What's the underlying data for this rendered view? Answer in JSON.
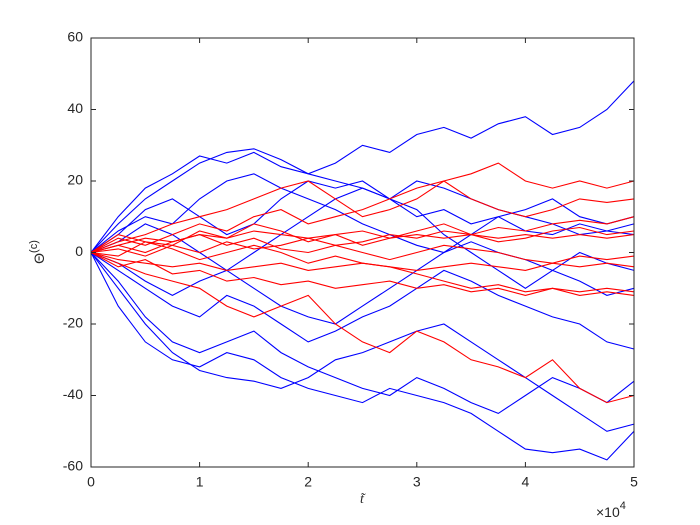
{
  "chart_data": {
    "type": "line",
    "y_label": "Θ",
    "y_label_superscript": "(c)",
    "x_label": "t̃",
    "x_multiplier": "×10",
    "x_multiplier_exponent": "4",
    "x": [
      0,
      2500,
      5000,
      7500,
      10000,
      12500,
      15000,
      17500,
      20000,
      22500,
      25000,
      27500,
      30000,
      32500,
      35000,
      37500,
      40000,
      42500,
      45000,
      47500,
      50000
    ],
    "xlim": [
      0,
      50000
    ],
    "xticks": [
      0,
      {
        "value": 10000,
        "label": "1"
      },
      {
        "value": 20000,
        "label": "2"
      },
      {
        "value": 30000,
        "label": "3"
      },
      {
        "value": 40000,
        "label": "4"
      },
      {
        "value": 50000,
        "label": "5"
      }
    ],
    "ylim": [
      -60,
      60
    ],
    "yticks": [
      -60,
      -40,
      -20,
      0,
      20,
      40,
      60
    ],
    "grid": false,
    "series": [
      {
        "color": "#0000ff",
        "values": [
          0,
          10,
          18,
          22,
          27,
          25,
          28,
          24,
          22,
          25,
          30,
          28,
          33,
          35,
          32,
          36,
          38,
          33,
          35,
          40,
          48
        ]
      },
      {
        "color": "#0000ff",
        "values": [
          0,
          8,
          15,
          20,
          25,
          28,
          29,
          26,
          22,
          20,
          18,
          15,
          10,
          12,
          8,
          10,
          6,
          5,
          8,
          6,
          5
        ]
      },
      {
        "color": "#0000ff",
        "values": [
          0,
          -10,
          -20,
          -28,
          -33,
          -35,
          -36,
          -38,
          -35,
          -30,
          -28,
          -25,
          -22,
          -20,
          -25,
          -30,
          -35,
          -40,
          -45,
          -50,
          -48
        ]
      },
      {
        "color": "#0000ff",
        "values": [
          0,
          -15,
          -25,
          -30,
          -32,
          -28,
          -30,
          -35,
          -38,
          -40,
          -42,
          -38,
          -40,
          -42,
          -45,
          -50,
          -55,
          -56,
          -55,
          -58,
          -50
        ]
      },
      {
        "color": "#0000ff",
        "values": [
          0,
          5,
          12,
          15,
          10,
          5,
          8,
          15,
          20,
          18,
          20,
          15,
          12,
          5,
          0,
          -5,
          -10,
          -5,
          0,
          -3,
          -5
        ]
      },
      {
        "color": "#0000ff",
        "values": [
          0,
          -5,
          -10,
          -15,
          -18,
          -12,
          -15,
          -20,
          -25,
          -22,
          -18,
          -15,
          -10,
          -5,
          -8,
          -12,
          -15,
          -18,
          -20,
          -25,
          -27
        ]
      },
      {
        "color": "#0000ff",
        "values": [
          0,
          3,
          8,
          5,
          0,
          -5,
          -10,
          -15,
          -18,
          -20,
          -15,
          -10,
          -5,
          0,
          5,
          10,
          12,
          15,
          10,
          8,
          10
        ]
      },
      {
        "color": "#0000ff",
        "values": [
          0,
          -8,
          -18,
          -25,
          -28,
          -25,
          -22,
          -28,
          -32,
          -35,
          -38,
          -40,
          -35,
          -38,
          -42,
          -45,
          -40,
          -35,
          -38,
          -42,
          -36
        ]
      },
      {
        "color": "#0000ff",
        "values": [
          0,
          6,
          10,
          8,
          15,
          20,
          22,
          18,
          15,
          12,
          8,
          5,
          2,
          0,
          3,
          0,
          -2,
          -5,
          -8,
          -12,
          -10
        ]
      },
      {
        "color": "#0000ff",
        "values": [
          0,
          -3,
          -8,
          -12,
          -8,
          -5,
          0,
          5,
          10,
          15,
          18,
          15,
          20,
          18,
          15,
          12,
          10,
          8,
          5,
          6,
          8
        ]
      },
      {
        "color": "#ff0000",
        "values": [
          0,
          3,
          5,
          8,
          10,
          12,
          15,
          18,
          20,
          15,
          10,
          12,
          15,
          20,
          22,
          25,
          20,
          18,
          20,
          18,
          20
        ]
      },
      {
        "color": "#ff0000",
        "values": [
          0,
          2,
          4,
          3,
          5,
          4,
          6,
          5,
          4,
          5,
          6,
          4,
          5,
          4,
          5,
          4,
          5,
          4,
          5,
          4,
          5
        ]
      },
      {
        "color": "#ff0000",
        "values": [
          0,
          -2,
          -3,
          -4,
          -3,
          -5,
          -4,
          -3,
          -5,
          -4,
          -3,
          -4,
          -5,
          -4,
          -3,
          -4,
          -5,
          -3,
          -4,
          -3,
          -4
        ]
      },
      {
        "color": "#ff0000",
        "values": [
          0,
          -3,
          -6,
          -8,
          -10,
          -15,
          -18,
          -15,
          -12,
          -20,
          -25,
          -28,
          -22,
          -25,
          -30,
          -32,
          -35,
          -30,
          -38,
          -42,
          -40
        ]
      },
      {
        "color": "#ff0000",
        "values": [
          0,
          4,
          2,
          5,
          8,
          6,
          10,
          12,
          8,
          10,
          12,
          15,
          18,
          20,
          15,
          12,
          10,
          12,
          15,
          14,
          15
        ]
      },
      {
        "color": "#ff0000",
        "values": [
          0,
          -4,
          -2,
          -6,
          -5,
          -8,
          -7,
          -9,
          -8,
          -10,
          -9,
          -8,
          -10,
          -9,
          -11,
          -10,
          -12,
          -10,
          -11,
          -10,
          -11
        ]
      },
      {
        "color": "#ff0000",
        "values": [
          0,
          5,
          3,
          2,
          6,
          4,
          8,
          6,
          3,
          5,
          2,
          4,
          6,
          8,
          5,
          7,
          6,
          8,
          9,
          8,
          10
        ]
      },
      {
        "color": "#ff0000",
        "values": [
          0,
          1,
          -1,
          2,
          0,
          3,
          1,
          2,
          4,
          2,
          3,
          5,
          4,
          6,
          5,
          3,
          4,
          6,
          7,
          5,
          6
        ]
      },
      {
        "color": "#ff0000",
        "values": [
          0,
          -1,
          3,
          1,
          -2,
          0,
          2,
          0,
          -3,
          -1,
          -3,
          -4,
          -6,
          -8,
          -10,
          -9,
          -11,
          -10,
          -12,
          -11,
          -12
        ]
      },
      {
        "color": "#ff0000",
        "values": [
          0,
          2,
          0,
          3,
          5,
          2,
          4,
          1,
          0,
          2,
          0,
          -2,
          0,
          2,
          1,
          0,
          -2,
          -3,
          -1,
          -2,
          -1
        ]
      }
    ]
  }
}
